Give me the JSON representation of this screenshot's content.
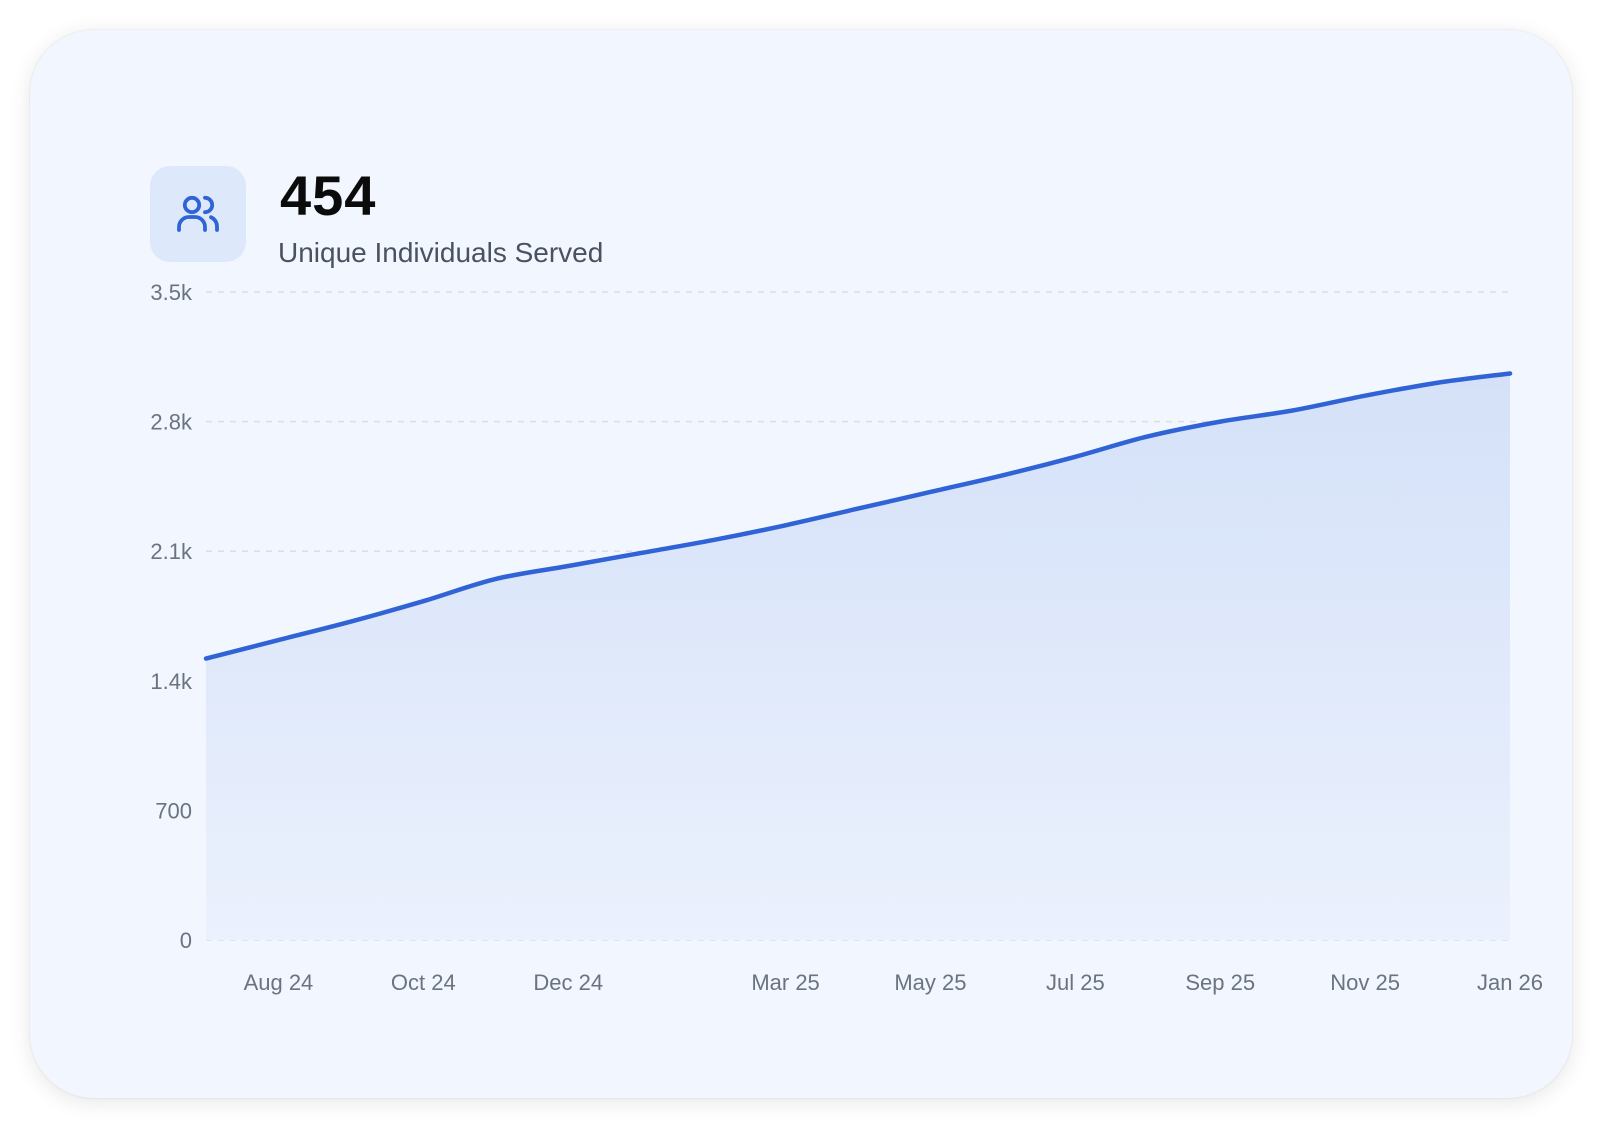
{
  "metric": {
    "value": "454",
    "label": "Unique Individuals Served",
    "icon": "users-icon"
  },
  "colors": {
    "card_bg": "#f2f7ff",
    "line": "#2f63d6",
    "area_top": "#d4e1f8",
    "area_bottom": "#ebf1fd",
    "grid": "#d9dde6",
    "tick_text": "#6b7280",
    "icon_bg": "#dde8fb"
  },
  "chart_data": {
    "type": "area",
    "grid": true,
    "ylim": [
      0,
      3500
    ],
    "yticks": [
      0,
      700,
      1400,
      2100,
      2800,
      3500
    ],
    "ytick_labels": [
      "0",
      "700",
      "1.4k",
      "2.1k",
      "2.8k",
      "3.5k"
    ],
    "xtick_labels": [
      "Aug 24",
      "Oct 24",
      "Dec 24",
      "Mar 25",
      "May 25",
      "Jul 25",
      "Sep 25",
      "Nov 25",
      "Jan 26"
    ],
    "x": [
      "Jul 24",
      "Aug 24",
      "Sep 24",
      "Oct 24",
      "Nov 24",
      "Dec 24",
      "Jan 25",
      "Feb 25",
      "Mar 25",
      "Apr 25",
      "May 25",
      "Jun 25",
      "Jul 25",
      "Aug 25",
      "Sep 25",
      "Oct 25",
      "Nov 25",
      "Dec 25",
      "Jan 26"
    ],
    "values": [
      1520,
      1620,
      1720,
      1830,
      1950,
      2020,
      2090,
      2160,
      2240,
      2330,
      2420,
      2510,
      2610,
      2720,
      2800,
      2860,
      2940,
      3010,
      3060
    ]
  }
}
